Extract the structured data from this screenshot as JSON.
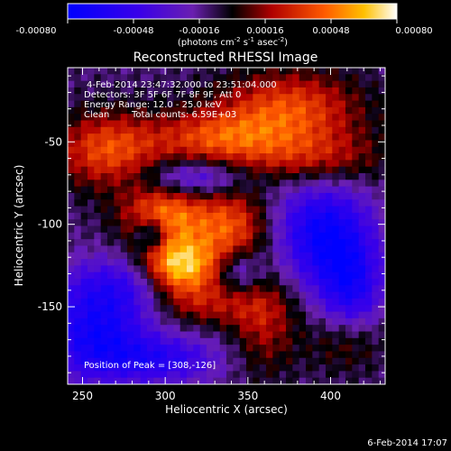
{
  "colorbar": {
    "ticks": [
      "-0.00080",
      "-0.00048",
      "-0.00016",
      "0.00016",
      "0.00048",
      "0.00080"
    ],
    "range": [
      -0.0008,
      0.0008
    ],
    "unit_label_parts": [
      "(photons cm",
      "-2",
      " s",
      "-1",
      " asec",
      "-2",
      ")"
    ]
  },
  "chart_data": {
    "type": "heatmap",
    "title": "Reconstructed RHESSI Image",
    "xlabel": "Heliocentric X (arcsec)",
    "ylabel": "Heliocentric Y (arcsec)",
    "xlim": [
      241,
      433
    ],
    "ylim": [
      -197,
      -5
    ],
    "x_ticks": [
      250,
      300,
      350,
      400
    ],
    "y_ticks": [
      -50,
      -100,
      -150
    ],
    "x_tick_labels": [
      "250",
      "300",
      "350",
      "400"
    ],
    "y_tick_labels": [
      "-50",
      "-100",
      "-150"
    ],
    "grid": false,
    "colormap": "rhessi-blue-purple-black-red-yellow-white",
    "features": [
      {
        "x": 308,
        "y": -126,
        "amp": 0.00085,
        "sx": 16,
        "sy": 12
      },
      {
        "x": 300,
        "y": -95,
        "amp": 0.0006,
        "sx": 18,
        "sy": 14
      },
      {
        "x": 340,
        "y": -103,
        "amp": 0.0005,
        "sx": 16,
        "sy": 18
      },
      {
        "x": 265,
        "y": -55,
        "amp": 0.0005,
        "sx": 22,
        "sy": 16
      },
      {
        "x": 330,
        "y": -48,
        "amp": 0.00045,
        "sx": 28,
        "sy": 12
      },
      {
        "x": 375,
        "y": -30,
        "amp": 0.0005,
        "sx": 30,
        "sy": 16
      },
      {
        "x": 390,
        "y": -60,
        "amp": 0.00035,
        "sx": 30,
        "sy": 12
      },
      {
        "x": 320,
        "y": -148,
        "amp": 0.00035,
        "sx": 28,
        "sy": 10
      },
      {
        "x": 360,
        "y": -160,
        "amp": 0.0003,
        "sx": 14,
        "sy": 22
      },
      {
        "x": 410,
        "y": -170,
        "amp": 0.0003,
        "sx": 16,
        "sy": 14
      },
      {
        "x": 292,
        "y": -106,
        "amp": -0.00045,
        "sx": 7,
        "sy": 7
      },
      {
        "x": 275,
        "y": -140,
        "amp": -0.00045,
        "sx": 28,
        "sy": 14
      },
      {
        "x": 258,
        "y": -170,
        "amp": -0.00055,
        "sx": 22,
        "sy": 18
      },
      {
        "x": 395,
        "y": -105,
        "amp": -0.0006,
        "sx": 20,
        "sy": 22
      },
      {
        "x": 412,
        "y": -140,
        "amp": -0.0005,
        "sx": 14,
        "sy": 22
      },
      {
        "x": 318,
        "y": -72,
        "amp": -0.0004,
        "sx": 22,
        "sy": 8
      },
      {
        "x": 345,
        "y": -128,
        "amp": -0.00035,
        "sx": 10,
        "sy": 10
      },
      {
        "x": 300,
        "y": -182,
        "amp": -0.0004,
        "sx": 24,
        "sy": 10
      }
    ]
  },
  "annotations": {
    "time_range": "4-Feb-2014 23:47:32.000 to 23:51:04.000",
    "detectors": "Detectors: 3F 5F 6F 7F 8F 9F, Att 0",
    "energy": "Energy Range: 12.0 - 25.0 keV",
    "clean": "Clean",
    "total_counts": "Total counts: 6.59E+03",
    "peak": "Position of Peak = [308,-126]"
  },
  "footer": {
    "timestamp": "6-Feb-2014 17:07"
  }
}
